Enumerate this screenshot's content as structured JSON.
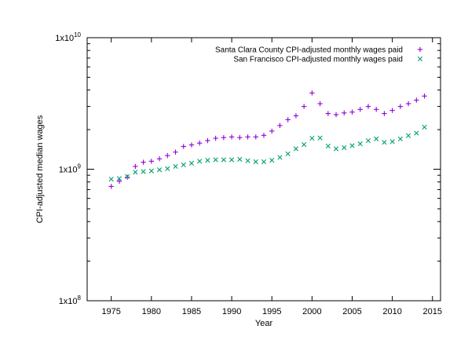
{
  "chart_data": {
    "type": "scatter",
    "title": "",
    "xlabel": "Year",
    "ylabel": "CPI-adjusted median wages",
    "xlim": [
      1972,
      2016
    ],
    "xticks": [
      1975,
      1980,
      1985,
      1990,
      1995,
      2000,
      2005,
      2010,
      2015
    ],
    "y_scale": "log",
    "ylim": [
      100000000,
      10000000000
    ],
    "yticks": [
      {
        "value": 100000000,
        "base": "1x10",
        "exp": "8"
      },
      {
        "value": 1000000000,
        "base": "1x10",
        "exp": "9"
      },
      {
        "value": 10000000000,
        "base": "1x10",
        "exp": "10"
      }
    ],
    "grid": false,
    "legend_position": "top-right",
    "x": [
      1975,
      1976,
      1977,
      1978,
      1979,
      1980,
      1981,
      1982,
      1983,
      1984,
      1985,
      1986,
      1987,
      1988,
      1989,
      1990,
      1991,
      1992,
      1993,
      1994,
      1995,
      1996,
      1997,
      1998,
      1999,
      2000,
      2001,
      2002,
      2003,
      2004,
      2005,
      2006,
      2007,
      2008,
      2009,
      2010,
      2011,
      2012,
      2013,
      2014
    ],
    "series": [
      {
        "name": "Santa Clara County CPI-adjusted monthly wages paid",
        "marker": "+",
        "color": "#9400d3",
        "values": [
          740000000,
          810000000,
          870000000,
          1050000000,
          1130000000,
          1150000000,
          1200000000,
          1270000000,
          1350000000,
          1490000000,
          1530000000,
          1580000000,
          1650000000,
          1720000000,
          1740000000,
          1760000000,
          1740000000,
          1760000000,
          1760000000,
          1810000000,
          1950000000,
          2150000000,
          2380000000,
          2550000000,
          3000000000,
          3800000000,
          3150000000,
          2650000000,
          2600000000,
          2680000000,
          2720000000,
          2850000000,
          3000000000,
          2850000000,
          2650000000,
          2800000000,
          3000000000,
          3150000000,
          3350000000,
          3600000000
        ]
      },
      {
        "name": "San Francisco CPI-adjusted monthly wages paid",
        "marker": "x",
        "color": "#009e73",
        "values": [
          840000000,
          850000000,
          880000000,
          950000000,
          960000000,
          970000000,
          990000000,
          1010000000,
          1050000000,
          1080000000,
          1110000000,
          1150000000,
          1170000000,
          1180000000,
          1180000000,
          1180000000,
          1190000000,
          1160000000,
          1140000000,
          1140000000,
          1170000000,
          1230000000,
          1310000000,
          1430000000,
          1540000000,
          1720000000,
          1730000000,
          1500000000,
          1430000000,
          1460000000,
          1510000000,
          1560000000,
          1650000000,
          1700000000,
          1600000000,
          1620000000,
          1700000000,
          1800000000,
          1880000000,
          2090000000
        ]
      }
    ]
  }
}
